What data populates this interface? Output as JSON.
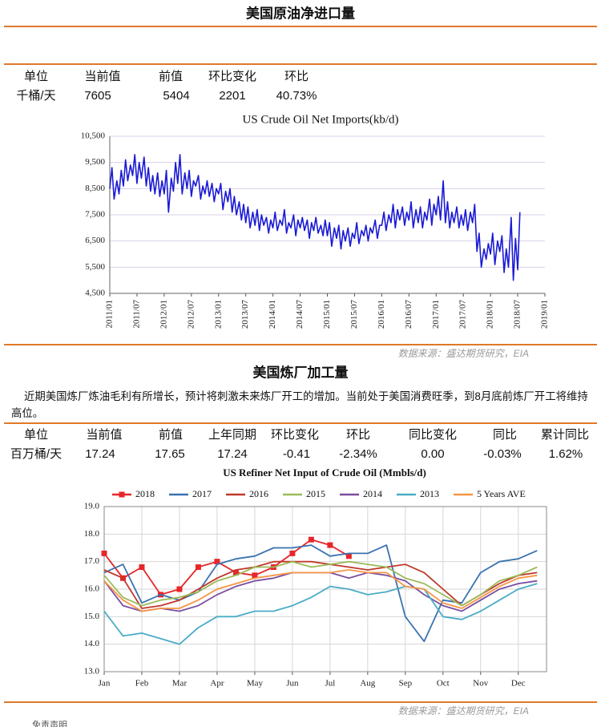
{
  "header": {
    "title": "美国原油净进口量"
  },
  "table1": {
    "headers": [
      "单位",
      "当前值",
      "前值",
      "环比变化",
      "环比"
    ],
    "rows": [
      [
        "千桶/天",
        "7605",
        "5404",
        "2201",
        "40.73%"
      ]
    ]
  },
  "source1": "数据来源：盛达期货研究，EIA",
  "section2": {
    "title": "美国炼厂加工量",
    "text": "近期美国炼厂炼油毛利有所增长，预计将刺激未来炼厂开工的增加。当前处于美国消费旺季，到8月底前炼厂开工将维持高位。"
  },
  "table2": {
    "headers": [
      "单位",
      "当前值",
      "前值",
      "上年同期",
      "环比变化",
      "环比",
      "同比变化",
      "同比",
      "累计同比"
    ],
    "rows": [
      [
        "百万桶/天",
        "17.24",
        "17.65",
        "17.24",
        "-0.41",
        "-2.34%",
        "0.00",
        "-0.03%",
        "1.62%"
      ]
    ]
  },
  "source2": "数据来源：盛达期货研究，EIA",
  "footer": "免责声明",
  "chart_data": [
    {
      "type": "line",
      "title": "US Crude Oil Net Imports(kb/d)",
      "grid": "y",
      "xlim": [
        2011,
        2019
      ],
      "xticks": [
        {
          "value": 2011,
          "label": "2011/01"
        },
        {
          "value": 2011.5,
          "label": "2011/07"
        },
        {
          "value": 2012,
          "label": "2012/01"
        },
        {
          "value": 2012.5,
          "label": "2012/07"
        },
        {
          "value": 2013,
          "label": "2013/01"
        },
        {
          "value": 2013.5,
          "label": "2013/07"
        },
        {
          "value": 2014,
          "label": "2014/01"
        },
        {
          "value": 2014.5,
          "label": "2014/07"
        },
        {
          "value": 2015,
          "label": "2015/01"
        },
        {
          "value": 2015.5,
          "label": "2015/07"
        },
        {
          "value": 2016,
          "label": "2016/01"
        },
        {
          "value": 2016.5,
          "label": "2016/07"
        },
        {
          "value": 2017,
          "label": "2017/01"
        },
        {
          "value": 2017.5,
          "label": "2017/07"
        },
        {
          "value": 2018,
          "label": "2018/01"
        },
        {
          "value": 2018.5,
          "label": "2018/07"
        },
        {
          "value": 2019,
          "label": "2019/01"
        }
      ],
      "ylim": [
        4500,
        10500
      ],
      "yticks": [
        {
          "value": 4500,
          "label": "4,500"
        },
        {
          "value": 5500,
          "label": "5,500"
        },
        {
          "value": 6500,
          "label": "6,500"
        },
        {
          "value": 7500,
          "label": "7,500"
        },
        {
          "value": 8500,
          "label": "8,500"
        },
        {
          "value": 9500,
          "label": "9,500"
        },
        {
          "value": 10500,
          "label": "10,500"
        }
      ],
      "x": [
        2011,
        2011.04,
        2011.08,
        2011.13,
        2011.17,
        2011.21,
        2011.25,
        2011.29,
        2011.33,
        2011.38,
        2011.42,
        2011.46,
        2011.5,
        2011.54,
        2011.58,
        2011.63,
        2011.67,
        2011.71,
        2011.75,
        2011.79,
        2011.83,
        2011.88,
        2011.92,
        2011.96,
        2012,
        2012.04,
        2012.08,
        2012.13,
        2012.17,
        2012.21,
        2012.25,
        2012.29,
        2012.33,
        2012.38,
        2012.42,
        2012.46,
        2012.5,
        2012.54,
        2012.58,
        2012.63,
        2012.67,
        2012.71,
        2012.75,
        2012.79,
        2012.83,
        2012.88,
        2012.92,
        2012.96,
        2013,
        2013.04,
        2013.08,
        2013.13,
        2013.17,
        2013.21,
        2013.25,
        2013.29,
        2013.33,
        2013.38,
        2013.42,
        2013.46,
        2013.5,
        2013.54,
        2013.58,
        2013.63,
        2013.67,
        2013.71,
        2013.75,
        2013.79,
        2013.83,
        2013.88,
        2013.92,
        2013.96,
        2014,
        2014.04,
        2014.08,
        2014.13,
        2014.17,
        2014.21,
        2014.25,
        2014.29,
        2014.33,
        2014.38,
        2014.42,
        2014.46,
        2014.5,
        2014.54,
        2014.58,
        2014.63,
        2014.67,
        2014.71,
        2014.75,
        2014.79,
        2014.83,
        2014.88,
        2014.92,
        2014.96,
        2015,
        2015.04,
        2015.08,
        2015.13,
        2015.17,
        2015.21,
        2015.25,
        2015.29,
        2015.33,
        2015.38,
        2015.42,
        2015.46,
        2015.5,
        2015.54,
        2015.58,
        2015.63,
        2015.67,
        2015.71,
        2015.75,
        2015.79,
        2015.83,
        2015.88,
        2015.92,
        2015.96,
        2016,
        2016.04,
        2016.08,
        2016.13,
        2016.17,
        2016.21,
        2016.25,
        2016.29,
        2016.33,
        2016.38,
        2016.42,
        2016.46,
        2016.5,
        2016.54,
        2016.58,
        2016.63,
        2016.67,
        2016.71,
        2016.75,
        2016.79,
        2016.83,
        2016.88,
        2016.92,
        2016.96,
        2017,
        2017.04,
        2017.08,
        2017.13,
        2017.17,
        2017.21,
        2017.25,
        2017.29,
        2017.33,
        2017.38,
        2017.42,
        2017.46,
        2017.5,
        2017.54,
        2017.58,
        2017.63,
        2017.67,
        2017.71,
        2017.75,
        2017.79,
        2017.83,
        2017.88,
        2017.92,
        2017.96,
        2018,
        2018.04,
        2018.08,
        2018.13,
        2018.17,
        2018.21,
        2018.25,
        2018.29,
        2018.33,
        2018.38,
        2018.42,
        2018.46,
        2018.5,
        2018.54
      ],
      "series": [
        {
          "color": "#1a1ad6",
          "values": [
            8500,
            9300,
            8100,
            8800,
            8300,
            9200,
            8600,
            9600,
            8800,
            9400,
            9000,
            9800,
            8700,
            9500,
            8900,
            9700,
            8600,
            9300,
            8400,
            9000,
            8300,
            9100,
            8200,
            8800,
            8300,
            9200,
            7600,
            8900,
            8400,
            9500,
            8700,
            9800,
            8300,
            9100,
            8500,
            9200,
            8200,
            8800,
            8600,
            9000,
            8100,
            8600,
            8300,
            8800,
            8200,
            8700,
            8000,
            8500,
            8300,
            8700,
            7700,
            8400,
            8000,
            8500,
            7600,
            8200,
            7500,
            8000,
            7300,
            7900,
            7200,
            7800,
            7000,
            7600,
            7100,
            7700,
            6900,
            7500,
            7100,
            7400,
            6800,
            7300,
            7000,
            7600,
            6900,
            7300,
            7100,
            7700,
            6800,
            7200,
            7000,
            7500,
            6700,
            7300,
            7000,
            7400,
            6900,
            7300,
            6600,
            7200,
            6900,
            7400,
            6800,
            7100,
            6700,
            7300,
            6700,
            7200,
            6300,
            7000,
            6600,
            7100,
            6200,
            6900,
            6500,
            7000,
            6300,
            6800,
            6600,
            7200,
            6400,
            6900,
            6700,
            7100,
            6500,
            7000,
            6800,
            7300,
            6600,
            7100,
            7100,
            7600,
            6900,
            7500,
            7200,
            7900,
            7000,
            7700,
            7300,
            7800,
            7100,
            7600,
            7300,
            8000,
            7000,
            7700,
            7200,
            7800,
            7000,
            7600,
            7300,
            8100,
            7100,
            7900,
            7500,
            8200,
            7300,
            8800,
            7200,
            8000,
            7000,
            7600,
            7200,
            7800,
            7000,
            7500,
            7100,
            7700,
            6900,
            7600,
            7200,
            7900,
            6100,
            6800,
            5500,
            6200,
            5800,
            6400,
            6000,
            6800,
            5600,
            6500,
            6100,
            6700,
            5300,
            6200,
            5500,
            7400,
            5000,
            6600,
            5400,
            7600
          ]
        }
      ]
    },
    {
      "type": "line",
      "title": "US Refiner Net Input of Crude Oil (Mmbls/d)",
      "grid": "both",
      "xlim": [
        0,
        11.75
      ],
      "xticks": [
        {
          "value": 0,
          "label": "Jan"
        },
        {
          "value": 1,
          "label": "Feb"
        },
        {
          "value": 2,
          "label": "Mar"
        },
        {
          "value": 3,
          "label": "Apr"
        },
        {
          "value": 4,
          "label": "May"
        },
        {
          "value": 5,
          "label": "Jun"
        },
        {
          "value": 6,
          "label": "Jul"
        },
        {
          "value": 7,
          "label": "Aug"
        },
        {
          "value": 8,
          "label": "Sep"
        },
        {
          "value": 9,
          "label": "Oct"
        },
        {
          "value": 10,
          "label": "Nov"
        },
        {
          "value": 11,
          "label": "Dec"
        }
      ],
      "ylim": [
        13,
        19
      ],
      "yticks": [
        {
          "value": 13,
          "label": "13.0"
        },
        {
          "value": 14,
          "label": "14.0"
        },
        {
          "value": 15,
          "label": "15.0"
        },
        {
          "value": 16,
          "label": "16.0"
        },
        {
          "value": 17,
          "label": "17.0"
        },
        {
          "value": 18,
          "label": "18.0"
        },
        {
          "value": 19,
          "label": "19.0"
        }
      ],
      "x": [
        0,
        0.5,
        1,
        1.5,
        2,
        2.5,
        3,
        3.5,
        4,
        4.5,
        5,
        5.5,
        6,
        6.5,
        7,
        7.5,
        8,
        8.5,
        9,
        9.5,
        10,
        10.5,
        11,
        11.5
      ],
      "series": [
        {
          "name": "2018",
          "color": "#e8262a",
          "marker": "square",
          "values": [
            17.3,
            16.4,
            16.8,
            15.8,
            16.0,
            16.8,
            17.0,
            16.6,
            16.5,
            16.8,
            17.3,
            17.8,
            17.6,
            17.2,
            null,
            null,
            null,
            null,
            null,
            null,
            null,
            null,
            null,
            null
          ]
        },
        {
          "name": "2017",
          "color": "#3a73b0",
          "values": [
            16.6,
            16.9,
            15.5,
            15.8,
            15.6,
            15.9,
            16.9,
            17.1,
            17.2,
            17.5,
            17.5,
            17.6,
            17.2,
            17.3,
            17.3,
            17.6,
            15.0,
            14.1,
            15.6,
            15.5,
            16.6,
            17.0,
            17.1,
            17.4
          ]
        },
        {
          "name": "2016",
          "color": "#c0392b",
          "values": [
            16.7,
            16.4,
            15.3,
            15.4,
            15.6,
            16.0,
            16.4,
            16.7,
            16.8,
            17.0,
            17.0,
            17.0,
            16.9,
            16.8,
            16.7,
            16.8,
            16.9,
            16.6,
            16.0,
            15.4,
            15.8,
            16.2,
            16.5,
            16.6
          ]
        },
        {
          "name": "2015",
          "color": "#9bbb59",
          "values": [
            16.5,
            15.7,
            15.4,
            15.6,
            15.7,
            15.9,
            16.3,
            16.5,
            16.8,
            16.8,
            17.0,
            16.8,
            16.9,
            17.0,
            16.9,
            16.8,
            16.4,
            16.2,
            15.8,
            15.4,
            15.8,
            16.3,
            16.5,
            16.8
          ]
        },
        {
          "name": "2014",
          "color": "#7a4fa0",
          "values": [
            16.3,
            15.4,
            15.2,
            15.3,
            15.2,
            15.4,
            15.8,
            16.1,
            16.3,
            16.4,
            16.6,
            16.6,
            16.6,
            16.4,
            16.6,
            16.5,
            16.3,
            15.8,
            15.4,
            15.2,
            15.6,
            16.0,
            16.2,
            16.3
          ]
        },
        {
          "name": "2013",
          "color": "#4bacc6",
          "values": [
            15.2,
            14.3,
            14.4,
            14.2,
            14.0,
            14.6,
            15.0,
            15.0,
            15.2,
            15.2,
            15.4,
            15.7,
            16.1,
            16.0,
            15.8,
            15.9,
            16.1,
            16.0,
            15.0,
            14.9,
            15.2,
            15.6,
            16.0,
            16.2
          ]
        },
        {
          "name": "5 Years AVE",
          "color": "#f79646",
          "values": [
            16.3,
            15.6,
            15.2,
            15.3,
            15.3,
            15.6,
            16.0,
            16.2,
            16.4,
            16.5,
            16.6,
            16.6,
            16.6,
            16.7,
            16.6,
            16.6,
            16.1,
            16.0,
            15.5,
            15.3,
            15.7,
            16.1,
            16.4,
            16.5
          ]
        }
      ]
    }
  ]
}
